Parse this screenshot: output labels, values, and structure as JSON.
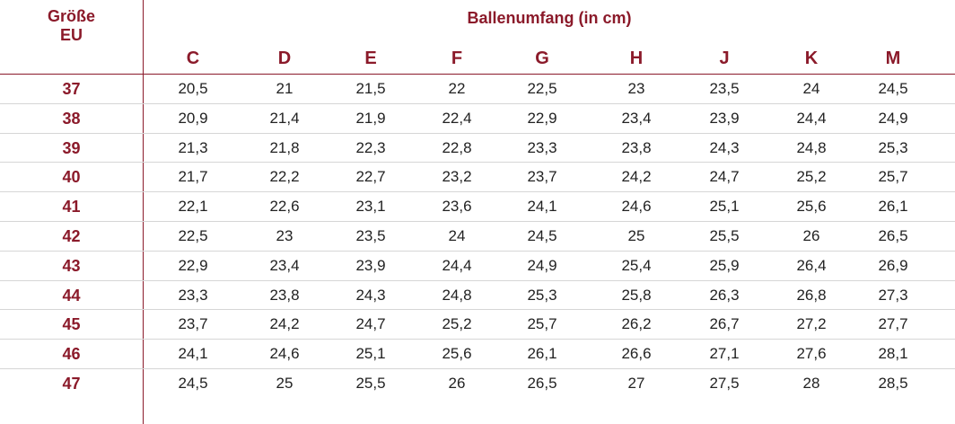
{
  "table": {
    "size_header_line1": "Größe",
    "size_header_line2": "EU",
    "group_header": "Ballenumfang (in cm)",
    "columns": [
      "C",
      "D",
      "E",
      "F",
      "G",
      "H",
      "J",
      "K",
      "M"
    ],
    "rows": [
      {
        "size": "37",
        "values": [
          "20,5",
          "21",
          "21,5",
          "22",
          "22,5",
          "23",
          "23,5",
          "24",
          "24,5"
        ]
      },
      {
        "size": "38",
        "values": [
          "20,9",
          "21,4",
          "21,9",
          "22,4",
          "22,9",
          "23,4",
          "23,9",
          "24,4",
          "24,9"
        ]
      },
      {
        "size": "39",
        "values": [
          "21,3",
          "21,8",
          "22,3",
          "22,8",
          "23,3",
          "23,8",
          "24,3",
          "24,8",
          "25,3"
        ]
      },
      {
        "size": "40",
        "values": [
          "21,7",
          "22,2",
          "22,7",
          "23,2",
          "23,7",
          "24,2",
          "24,7",
          "25,2",
          "25,7"
        ]
      },
      {
        "size": "41",
        "values": [
          "22,1",
          "22,6",
          "23,1",
          "23,6",
          "24,1",
          "24,6",
          "25,1",
          "25,6",
          "26,1"
        ]
      },
      {
        "size": "42",
        "values": [
          "22,5",
          "23",
          "23,5",
          "24",
          "24,5",
          "25",
          "25,5",
          "26",
          "26,5"
        ]
      },
      {
        "size": "43",
        "values": [
          "22,9",
          "23,4",
          "23,9",
          "24,4",
          "24,9",
          "25,4",
          "25,9",
          "26,4",
          "26,9"
        ]
      },
      {
        "size": "44",
        "values": [
          "23,3",
          "23,8",
          "24,3",
          "24,8",
          "25,3",
          "25,8",
          "26,3",
          "26,8",
          "27,3"
        ]
      },
      {
        "size": "45",
        "values": [
          "23,7",
          "24,2",
          "24,7",
          "25,2",
          "25,7",
          "26,2",
          "26,7",
          "27,2",
          "27,7"
        ]
      },
      {
        "size": "46",
        "values": [
          "24,1",
          "24,6",
          "25,1",
          "25,6",
          "26,1",
          "26,6",
          "27,1",
          "27,6",
          "28,1"
        ]
      },
      {
        "size": "47",
        "values": [
          "24,5",
          "25",
          "25,5",
          "26",
          "26,5",
          "27",
          "27,5",
          "28",
          "28,5"
        ]
      }
    ]
  },
  "colors": {
    "accent": "#8b1a2a",
    "text": "#222222",
    "row_rule": "#d6d6d6"
  }
}
